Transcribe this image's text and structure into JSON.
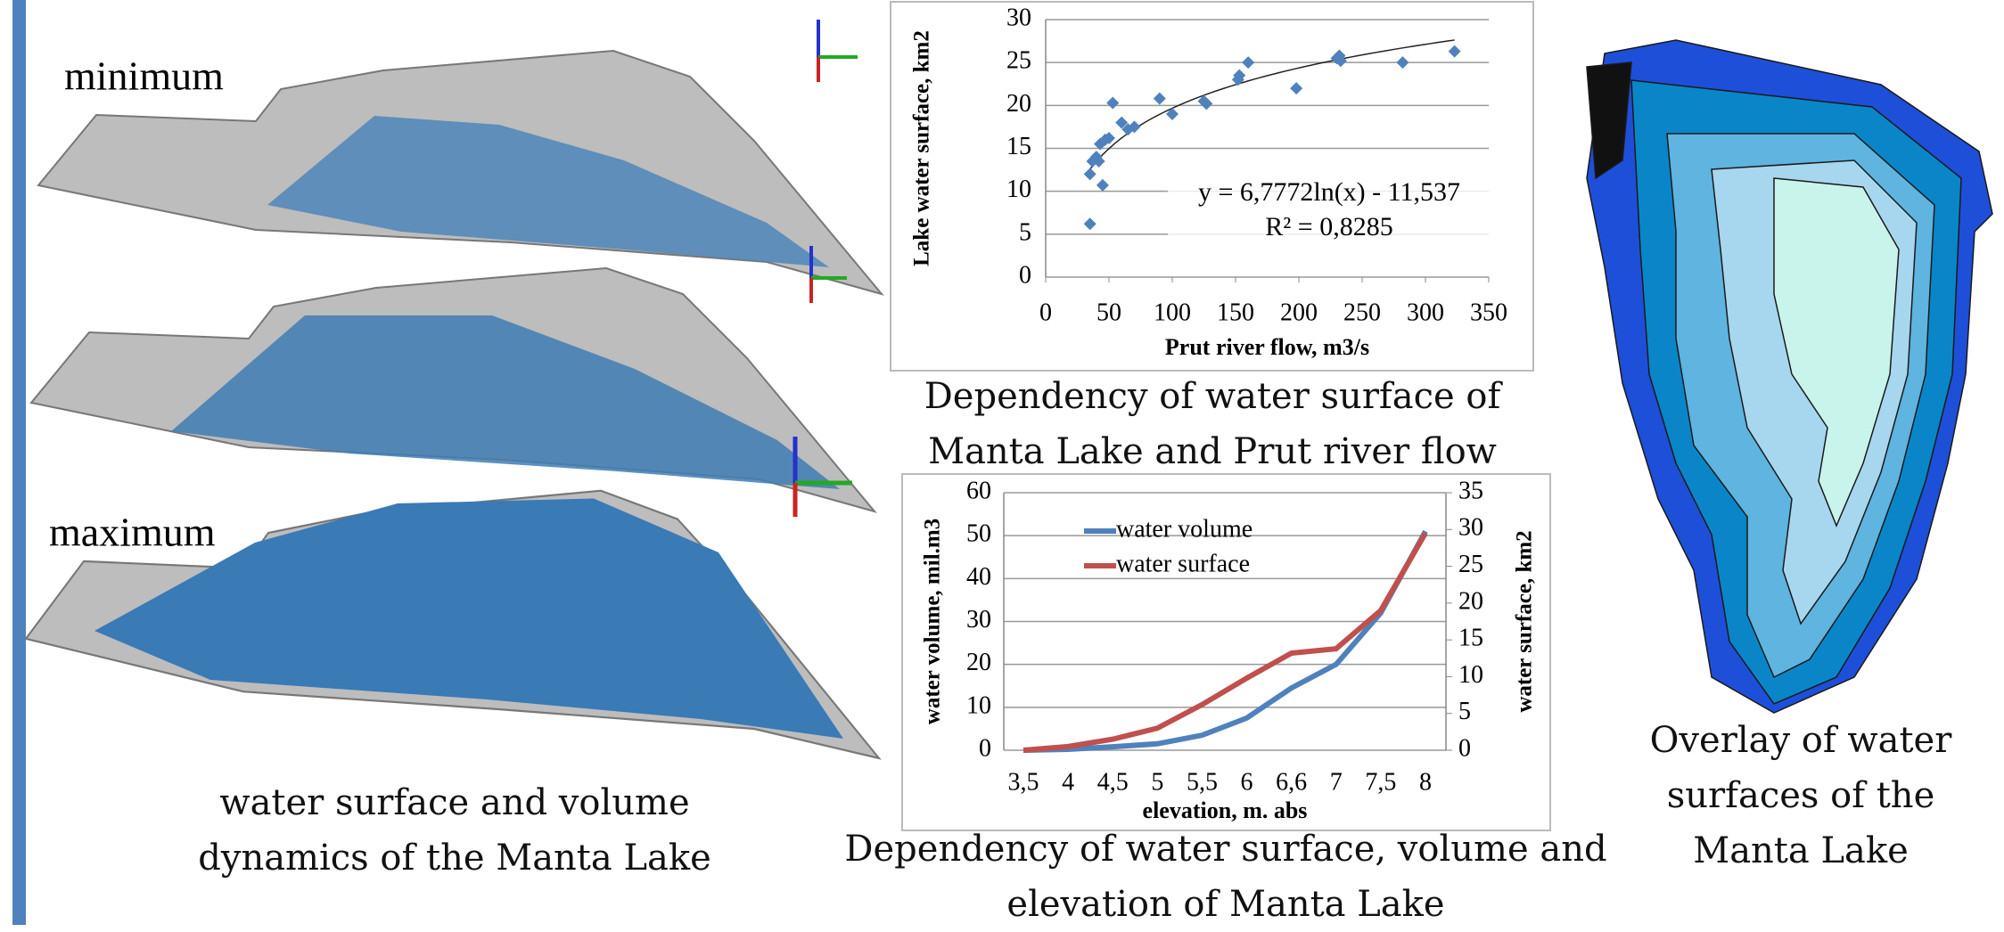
{
  "panel_labels": [
    "minimum",
    "maximum"
  ],
  "captions": {
    "left": "water surface and volume dynamics of the Manta Lake",
    "top_middle": "Dependency of water surface of Manta Lake and Prut river flow",
    "bottom_middle": "Dependency of water surface, volume and elevation of  Manta Lake",
    "right": "Overlay of water surfaces of the Manta Lake"
  },
  "chart_data": [
    {
      "type": "scatter",
      "x_label": "Prut river flow, m3/s",
      "y_label": "Lake water surface, km2",
      "x": [
        35,
        35,
        37,
        40,
        42,
        45,
        43,
        47,
        50,
        53,
        60,
        65,
        70,
        90,
        100,
        125,
        127,
        152,
        153,
        160,
        198,
        230,
        232,
        233,
        282,
        323
      ],
      "values": [
        6.2,
        12,
        13.5,
        14,
        13.5,
        10.7,
        15.5,
        16,
        16.2,
        20.3,
        18,
        17.2,
        17.5,
        20.8,
        19,
        20.5,
        20.2,
        23,
        23.5,
        25,
        22,
        25.5,
        25.8,
        25.2,
        25,
        26.3
      ],
      "color": "#4f81bd",
      "trendline": {
        "a": 6.7772,
        "b": -11.537,
        "label": "y = 6,7772ln(x) - 11,537",
        "r_squared": 0.8285,
        "r2_label": "R² = 0,8285"
      },
      "xlim": [
        0,
        350
      ],
      "xticks": [
        0,
        50,
        100,
        150,
        200,
        250,
        300,
        350
      ],
      "ylim": [
        0,
        30
      ],
      "yticks": [
        0,
        5,
        10,
        15,
        20,
        25,
        30
      ],
      "grid": true
    },
    {
      "type": "line",
      "x_label": "elevation, m. abs",
      "y_label": "water volume, mil.m3",
      "y2_label": "water surface, km2",
      "categories": [
        "3,5",
        "4",
        "4,5",
        "5",
        "5,5",
        "6",
        "6,6",
        "7",
        "7,5",
        "8"
      ],
      "series": [
        {
          "name": "water volume",
          "color": "#4f81bd",
          "values": [
            0,
            0.2,
            0.8,
            1.5,
            3.5,
            7.5,
            14.5,
            20,
            32,
            51
          ]
        },
        {
          "name": "water surface",
          "color": "#c0504d",
          "axis": "y2",
          "values": [
            0,
            0.5,
            1.5,
            3,
            6.2,
            9.8,
            13.2,
            13.8,
            19,
            29.5
          ]
        }
      ],
      "ylim": [
        0,
        60
      ],
      "yticks": [
        0,
        10,
        20,
        30,
        40,
        50,
        60
      ],
      "y2lim": [
        0,
        35
      ],
      "y2ticks": [
        0,
        5,
        10,
        15,
        20,
        25,
        30,
        35
      ],
      "grid": true,
      "legend": "upper left"
    }
  ]
}
